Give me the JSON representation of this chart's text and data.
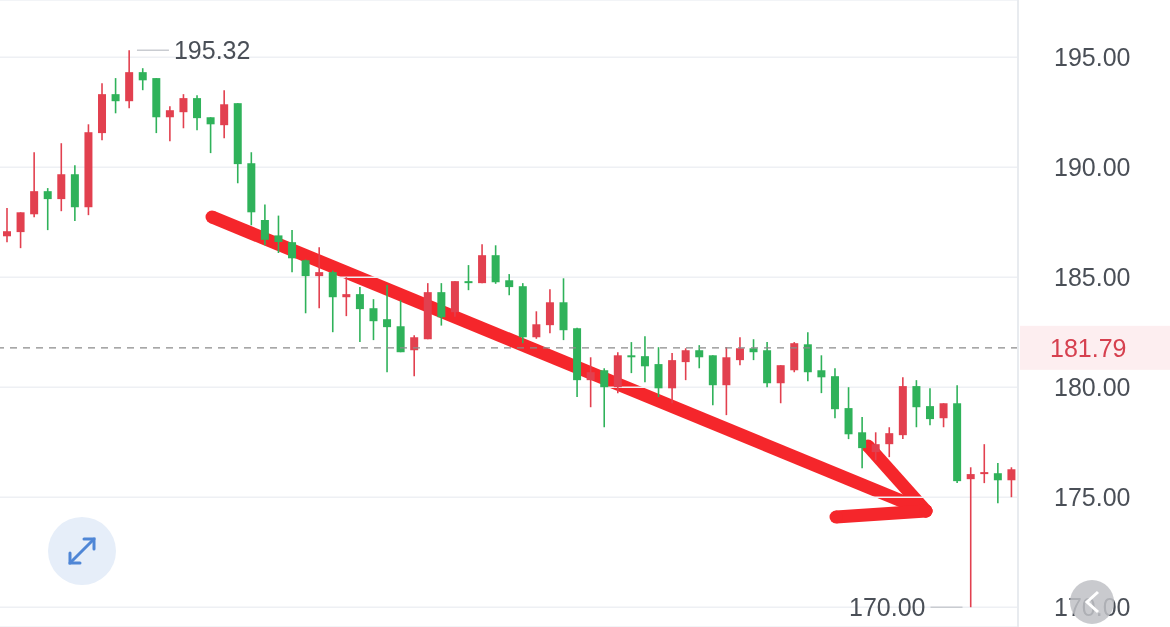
{
  "chart_data": {
    "type": "candlestick",
    "categories": [
      null,
      null,
      null,
      null,
      null,
      null,
      null,
      null,
      null,
      null,
      null,
      null,
      null,
      null,
      null,
      null,
      null,
      null,
      null,
      null,
      null,
      null,
      null,
      null,
      null,
      null,
      null,
      null,
      null,
      null,
      null,
      null,
      null,
      null,
      null,
      null,
      null,
      null,
      null,
      null,
      null,
      null,
      null,
      null,
      null,
      null,
      null,
      null,
      null,
      null,
      null,
      null,
      null,
      null,
      null,
      null,
      null,
      null,
      null,
      null,
      null,
      null,
      null,
      null,
      null,
      null,
      null,
      null,
      null,
      null,
      null,
      null,
      null,
      null,
      null
    ],
    "ohlc": [
      [
        186.86,
        188.14,
        186.59,
        187.09
      ],
      [
        187.05,
        187.95,
        186.32,
        187.95
      ],
      [
        187.86,
        190.68,
        187.73,
        188.91
      ],
      [
        188.91,
        189.05,
        187.14,
        188.55
      ],
      [
        188.55,
        191.09,
        188.0,
        189.68
      ],
      [
        189.68,
        190.09,
        187.55,
        188.18
      ],
      [
        188.18,
        191.95,
        187.82,
        191.59
      ],
      [
        191.55,
        193.82,
        191.23,
        193.32
      ],
      [
        193.32,
        194.05,
        192.45,
        193.0
      ],
      [
        193.0,
        195.32,
        192.68,
        194.32
      ],
      [
        194.32,
        194.5,
        193.5,
        193.95
      ],
      [
        194.05,
        194.05,
        191.55,
        192.27
      ],
      [
        192.27,
        192.77,
        191.18,
        192.59
      ],
      [
        192.5,
        193.32,
        191.77,
        193.14
      ],
      [
        193.14,
        193.27,
        191.68,
        192.23
      ],
      [
        192.27,
        192.27,
        190.64,
        191.95
      ],
      [
        191.91,
        193.5,
        191.32,
        192.86
      ],
      [
        192.91,
        192.91,
        189.27,
        190.14
      ],
      [
        190.18,
        190.68,
        187.36,
        187.95
      ],
      [
        187.6,
        188.3,
        186.45,
        186.7
      ],
      [
        186.9,
        187.8,
        186.1,
        186.6
      ],
      [
        186.59,
        187.14,
        185.23,
        185.86
      ],
      [
        185.77,
        185.8,
        183.36,
        185.05
      ],
      [
        185.05,
        186.36,
        183.59,
        185.23
      ],
      [
        185.23,
        185.3,
        182.5,
        184.09
      ],
      [
        184.09,
        185.0,
        183.23,
        184.23
      ],
      [
        184.23,
        184.55,
        182.05,
        183.55
      ],
      [
        183.59,
        184.0,
        182.14,
        183.0
      ],
      [
        183.09,
        184.64,
        180.68,
        182.73
      ],
      [
        182.77,
        183.95,
        181.59,
        181.59
      ],
      [
        181.68,
        182.36,
        180.5,
        182.27
      ],
      [
        182.18,
        184.73,
        182.18,
        184.32
      ],
      [
        184.32,
        184.73,
        182.8,
        183.18
      ],
      [
        183.41,
        184.82,
        183.2,
        184.82
      ],
      [
        184.82,
        185.55,
        184.41,
        184.73
      ],
      [
        184.73,
        186.5,
        184.73,
        186.0
      ],
      [
        186.0,
        186.45,
        184.7,
        184.77
      ],
      [
        184.86,
        185.14,
        184.18,
        184.55
      ],
      [
        184.59,
        184.73,
        182.0,
        182.27
      ],
      [
        182.27,
        183.45,
        182.2,
        182.86
      ],
      [
        182.82,
        184.45,
        182.45,
        183.86
      ],
      [
        183.86,
        184.95,
        182.14,
        182.59
      ],
      [
        182.68,
        182.7,
        179.55,
        180.32
      ],
      [
        180.32,
        181.36,
        179.09,
        180.68
      ],
      [
        180.77,
        180.86,
        178.18,
        180.0
      ],
      [
        180.0,
        181.59,
        179.73,
        181.45
      ],
      [
        181.45,
        182.05,
        180.64,
        181.36
      ],
      [
        181.41,
        182.32,
        180.23,
        180.95
      ],
      [
        181.05,
        181.82,
        179.55,
        179.95
      ],
      [
        179.95,
        181.55,
        179.27,
        181.23
      ],
      [
        181.14,
        181.77,
        180.32,
        181.68
      ],
      [
        181.68,
        181.91,
        180.86,
        181.36
      ],
      [
        181.45,
        181.45,
        179.18,
        180.09
      ],
      [
        180.09,
        181.82,
        178.73,
        181.36
      ],
      [
        181.23,
        182.27,
        181.0,
        181.77
      ],
      [
        181.77,
        182.18,
        181.23,
        181.59
      ],
      [
        181.68,
        182.05,
        180.0,
        180.18
      ],
      [
        180.18,
        181.0,
        179.27,
        181.0
      ],
      [
        180.77,
        182.05,
        180.68,
        182.0
      ],
      [
        181.95,
        182.5,
        180.27,
        180.68
      ],
      [
        180.77,
        181.45,
        179.73,
        180.45
      ],
      [
        180.5,
        180.86,
        178.59,
        179.0
      ],
      [
        179.05,
        180.0,
        177.64,
        177.86
      ],
      [
        177.95,
        178.64,
        176.32,
        177.23
      ],
      [
        177.05,
        177.95,
        176.68,
        177.41
      ],
      [
        177.41,
        178.18,
        176.82,
        177.91
      ],
      [
        177.82,
        180.45,
        177.64,
        180.05
      ],
      [
        180.05,
        180.32,
        178.18,
        179.09
      ],
      [
        179.14,
        179.95,
        178.27,
        178.55
      ],
      [
        178.59,
        179.27,
        178.18,
        179.27
      ],
      [
        179.27,
        180.09,
        175.64,
        175.73
      ],
      [
        175.82,
        176.36,
        170.0,
        176.05
      ],
      [
        176.05,
        177.41,
        175.64,
        176.14
      ],
      [
        176.09,
        176.55,
        174.73,
        175.77
      ],
      [
        175.77,
        176.36,
        175.0,
        176.27
      ]
    ],
    "colors": [
      "#e2404f",
      "#e2404f",
      "#e2404f",
      "#2fb25a",
      "#e2404f",
      "#2fb25a",
      "#e2404f",
      "#e2404f",
      "#2fb25a",
      "#e2404f",
      "#2fb25a",
      "#2fb25a",
      "#e2404f",
      "#e2404f",
      "#2fb25a",
      "#2fb25a",
      "#e2404f",
      "#2fb25a",
      "#2fb25a",
      "#2fb25a",
      "#2fb25a",
      "#2fb25a",
      "#2fb25a",
      "#e2404f",
      "#2fb25a",
      "#e2404f",
      "#2fb25a",
      "#2fb25a",
      "#2fb25a",
      "#2fb25a",
      "#e2404f",
      "#e2404f",
      "#2fb25a",
      "#e2404f",
      "#2fb25a",
      "#e2404f",
      "#2fb25a",
      "#2fb25a",
      "#2fb25a",
      "#e2404f",
      "#e2404f",
      "#2fb25a",
      "#2fb25a",
      "#e2404f",
      "#2fb25a",
      "#e2404f",
      "#2fb25a",
      "#2fb25a",
      "#2fb25a",
      "#e2404f",
      "#e2404f",
      "#2fb25a",
      "#2fb25a",
      "#e2404f",
      "#e2404f",
      "#2fb25a",
      "#2fb25a",
      "#e2404f",
      "#e2404f",
      "#2fb25a",
      "#2fb25a",
      "#2fb25a",
      "#2fb25a",
      "#2fb25a",
      "#e2404f",
      "#e2404f",
      "#e2404f",
      "#2fb25a",
      "#2fb25a",
      "#e2404f",
      "#2fb25a",
      "#e2404f",
      "#e2404f",
      "#2fb25a",
      "#e2404f"
    ],
    "ylim": [
      169.1,
      197.6
    ],
    "yticks": [
      {
        "value": 170,
        "label": "170.00"
      },
      {
        "value": 175,
        "label": "175.00"
      },
      {
        "value": 180,
        "label": "180.00"
      },
      {
        "value": 185,
        "label": "185.00"
      },
      {
        "value": 190,
        "label": "190.00"
      },
      {
        "value": 195,
        "label": "195.00"
      }
    ],
    "grid": "y",
    "tick_labels": "y",
    "ref_lines": [
      {
        "axis": "y",
        "value": 181.79,
        "label": "181.79",
        "color": "#8a8a8a",
        "line_style": "dashed"
      }
    ],
    "annotations": [
      "195.32",
      "170.00"
    ]
  }
}
